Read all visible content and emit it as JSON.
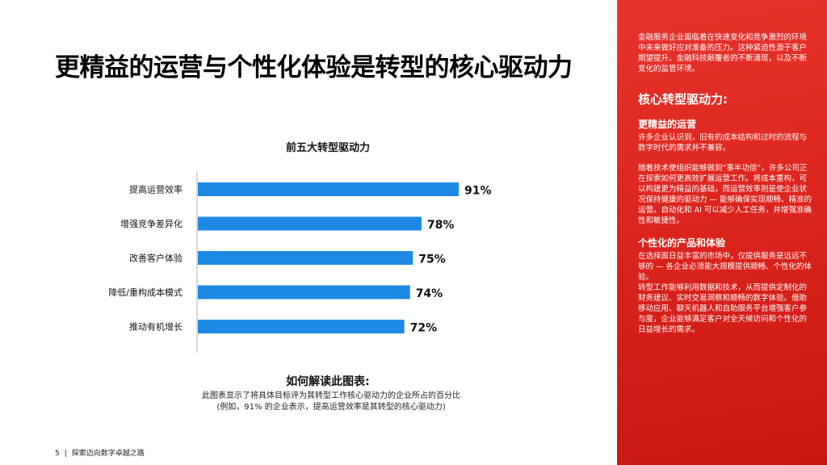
{
  "title": "更精益的运营与个性化体验是转型的核心驱动力",
  "chart_data": {
    "type": "bar",
    "orientation": "horizontal",
    "title": "前五大转型驱动力",
    "categories": [
      "提高运营效率",
      "增强竞争差异化",
      "改善客户体验",
      "降低/重构成本模式",
      "推动有机增长"
    ],
    "values": [
      91,
      78,
      75,
      74,
      72
    ],
    "value_labels": [
      "91%",
      "78%",
      "75%",
      "74%",
      "72%"
    ],
    "xlim": [
      0,
      100
    ],
    "bar_color": "#1e88e5",
    "grid": false
  },
  "explanation": {
    "title": "如何解读此图表:",
    "line1": "此图表显示了将具体目标评为其转型工作核心驱动力的企业所占的百分比",
    "line2": "(例如，91% 的企业表示，提高运营效率是其转型的核心驱动力)"
  },
  "footer": {
    "page_number": "5",
    "separator": "|",
    "text": "探索迈向数字卓越之路"
  },
  "sidebar": {
    "intro": "金融服务企业面临着在快速变化和竞争激烈的环境中未来做好应对准备的压力。这种紧迫性源于客户期望提升、金融科技颠覆者的不断涌现，以及不断变化的监管环境。",
    "heading": "核心转型驱动力:",
    "section1_title": "更精益的运营",
    "section1_p1": "许多企业认识到，旧有的成本结构和过时的流程与数字时代的需求并不兼容。",
    "section1_p2": "随着技术使组织能够做到“事半功倍”，许多公司正在探索如何更高效扩展运营工作。将成本重构，可以构建更为精益的基础，而运营效率则是使企业状况保持健康的驱动力 — 能够确保实现顺畅、精准的运营。自动化和 AI 可以减少人工任务，并增强准确性和敏捷性。",
    "section2_title": "个性化的产品和体验",
    "section2_p1": "在选择面日益丰富的市场中，仅提供服务是远远不够的 — 各企业必须能大规模提供顺畅、个性化的体验。",
    "section2_p2": "转型工作能够利用数据和技术，从而提供定制化的财务建议、实时交易洞察和顺畅的数字体验。借助移动应用、聊天机器人和自助服务平台增强客户参与度，企业能够满足客户对全天候访问和个性化的日益增长的需求。"
  },
  "colors": {
    "accent": "#e0271f",
    "bar": "#1e88e5"
  }
}
